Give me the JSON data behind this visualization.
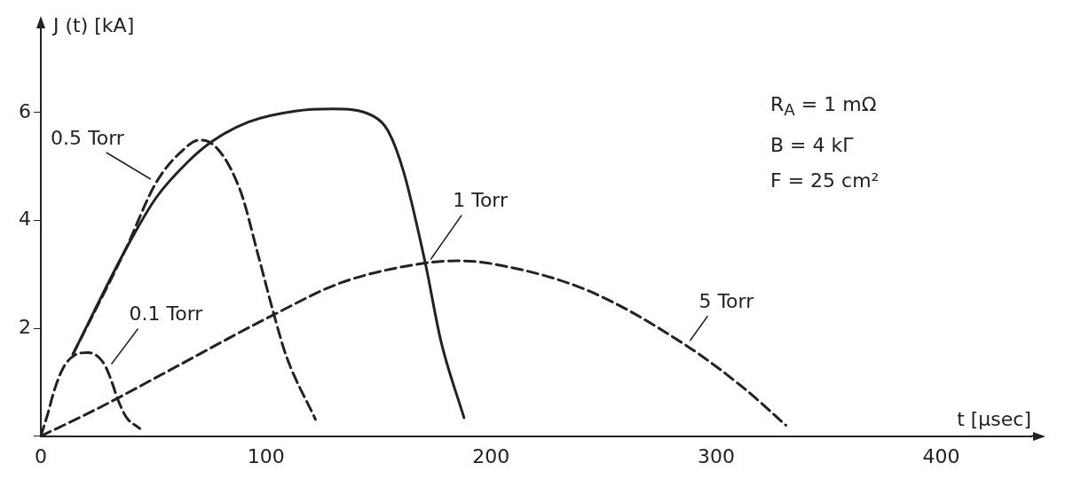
{
  "chart_data": {
    "type": "line",
    "xlabel": "t [µsec]",
    "ylabel": "J (t) [kA]",
    "xlim": [
      0,
      440
    ],
    "ylim": [
      0,
      7.3
    ],
    "xticks": [
      0,
      100,
      200,
      300,
      400
    ],
    "yticks": [
      {
        "value": 0,
        "label": null
      },
      2,
      4,
      6
    ],
    "grid": false,
    "legend": false,
    "marker": "none",
    "series": [
      {
        "name": "0.1 Torr",
        "color": "#222222",
        "line_style": "dashed",
        "x": [
          0,
          3,
          6,
          10,
          15,
          21,
          26,
          29,
          32,
          34,
          38,
          44
        ],
        "values": [
          0,
          0.4,
          0.85,
          1.27,
          1.5,
          1.55,
          1.45,
          1.27,
          0.95,
          0.7,
          0.35,
          0.14
        ]
      },
      {
        "name": "0.5 Torr",
        "color": "#222222",
        "line_style": "dashed",
        "x": [
          14.3,
          37.4,
          51.2,
          63.5,
          70.4,
          74.6,
          88.3,
          96.6,
          103.4,
          109,
          122
        ],
        "values": [
          1.52,
          3.44,
          4.7,
          5.32,
          5.49,
          5.46,
          4.59,
          3.35,
          2.28,
          1.49,
          0.31
        ]
      },
      {
        "name": "1 Torr",
        "color": "#222222",
        "line_style": "solid",
        "x": [
          14.3,
          37.4,
          51.2,
          64.9,
          75.9,
          92.4,
          113,
          129.6,
          147.5,
          154.3,
          161.2,
          170.8,
          177.7,
          188
        ],
        "values": [
          1.52,
          3.44,
          4.42,
          5.07,
          5.46,
          5.83,
          6.03,
          6.07,
          5.94,
          5.66,
          4.9,
          3.21,
          1.77,
          0.34
        ]
      },
      {
        "name": "5 Torr",
        "color": "#222222",
        "line_style": "dashed",
        "x": [
          0,
          19.5,
          34,
          56.7,
          103.4,
          133.7,
          170.8,
          185,
          200,
          243,
          286,
          312,
          331
        ],
        "values": [
          0,
          0.39,
          0.7,
          1.21,
          2.25,
          2.85,
          3.21,
          3.25,
          3.2,
          2.7,
          1.7,
          0.9,
          0.2
        ]
      }
    ],
    "annotations": [
      "R$_{A}$ = 1 mΩ",
      "B = 4 kΓ",
      "F = 25 cm²"
    ]
  }
}
